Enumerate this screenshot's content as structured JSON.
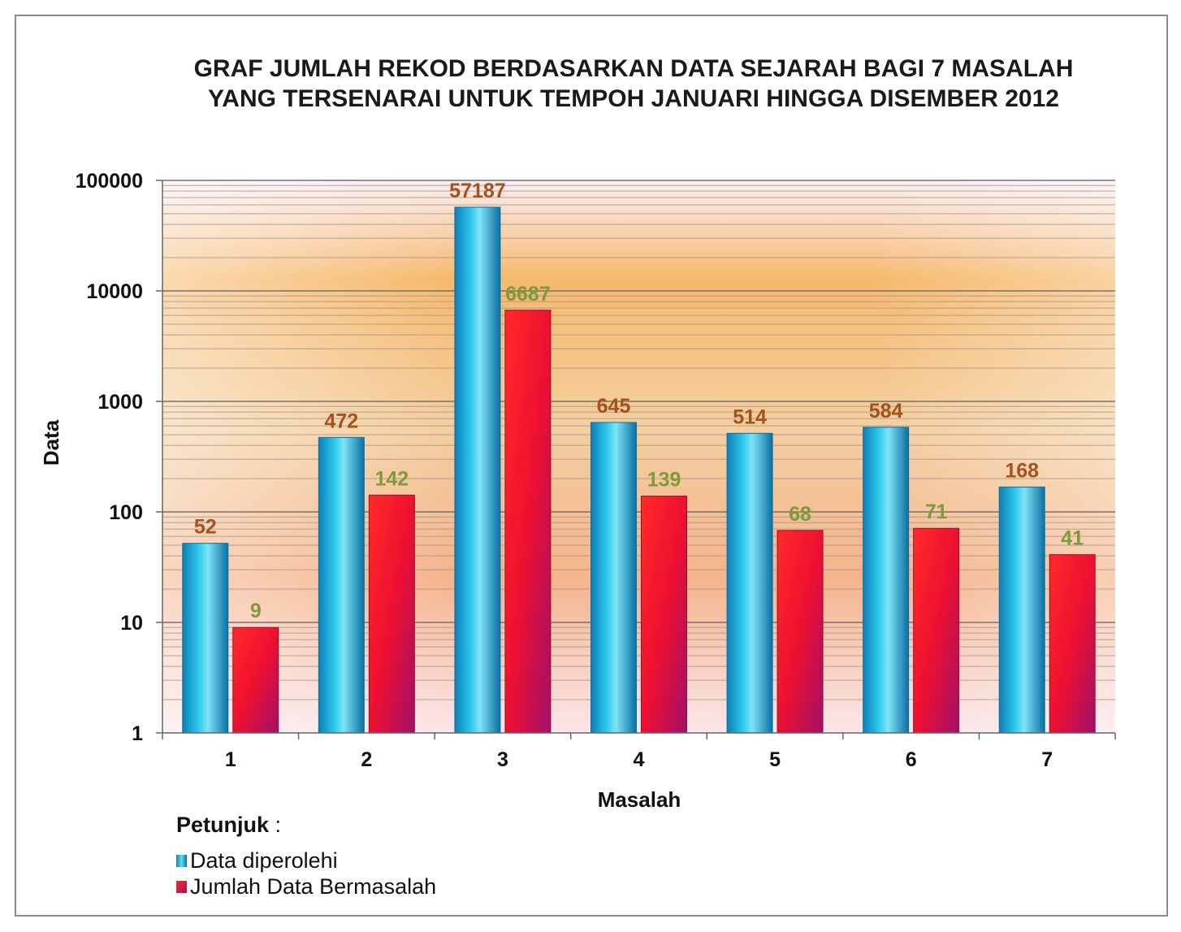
{
  "chart_data": {
    "type": "bar",
    "title_lines": [
      "GRAF JUMLAH REKOD BERDASARKAN DATA SEJARAH BAGI 7 MASALAH",
      "YANG TERSENARAI UNTUK TEMPOH JANUARI HINGGA DISEMBER 2012"
    ],
    "xlabel": "Masalah",
    "ylabel": "Data",
    "y_scale": "log",
    "ylim": [
      1,
      100000
    ],
    "y_ticks": [
      "1",
      "10",
      "100",
      "1000",
      "10000",
      "100000"
    ],
    "categories": [
      "1",
      "2",
      "3",
      "4",
      "5",
      "6",
      "7"
    ],
    "series": [
      {
        "name": "Data diperolehi",
        "values": [
          52,
          472,
          57187,
          645,
          514,
          584,
          168
        ],
        "color": "#1aa8d8",
        "label_color": "#a5521c"
      },
      {
        "name": "Jumlah Data Bermasalah",
        "values": [
          9,
          142,
          6687,
          139,
          68,
          71,
          41
        ],
        "color": "#e8102a",
        "label_color": "#7f9a3a"
      }
    ],
    "grid": true,
    "legend_placement": "bottom-left"
  },
  "legend": {
    "title": "Petunjuk",
    "title_suffix": " :",
    "items": [
      "Data diperolehi",
      "Jumlah Data Bermasalah"
    ]
  }
}
